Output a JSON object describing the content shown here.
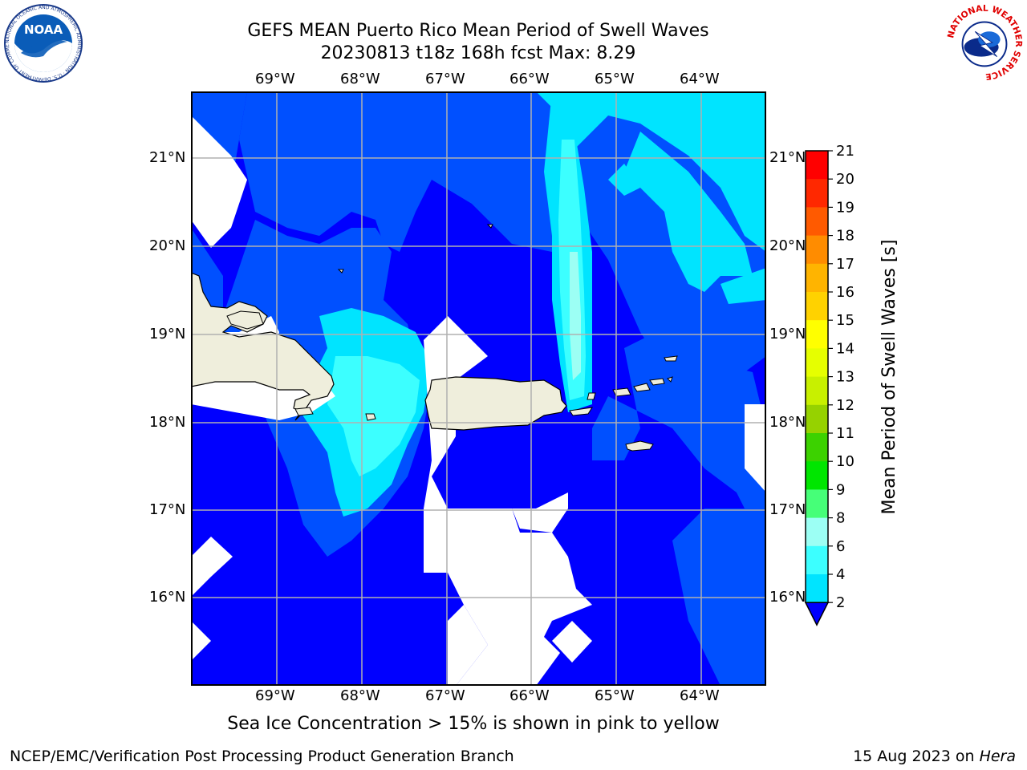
{
  "title_line1": "GEFS MEAN Puerto Rico Mean Period of Swell Waves",
  "title_line2": "20230813 t18z 168h fcst   Max: 8.29",
  "bottom_note": "Sea Ice Concentration > 15% is shown in pink to yellow",
  "footer_left": "NCEP/EMC/Verification Post Processing Product Generation Branch",
  "footer_right_date": "15 Aug 2023 on ",
  "footer_right_host": "Hera",
  "logo_left_text": "NOAA",
  "logo_left_ring": "NATIONAL OCEANIC AND ATMOSPHERIC ADMINISTRATION · U.S. DEPARTMENT OF COMMERCE",
  "logo_right_ring": "NATIONAL WEATHER SERVICE",
  "map": {
    "lon_labels": [
      "69°W",
      "68°W",
      "67°W",
      "66°W",
      "65°W",
      "64°W"
    ],
    "lat_labels": [
      "21°N",
      "20°N",
      "19°N",
      "18°N",
      "17°N",
      "16°N"
    ],
    "lon_range": [
      -70.0,
      -63.25
    ],
    "lat_range": [
      15.0,
      21.75
    ]
  },
  "colorbar": {
    "label": "Mean Period of Swell Waves [s]",
    "ticks": [
      "2",
      "4",
      "6",
      "8",
      "9",
      "10",
      "11",
      "12",
      "13",
      "14",
      "15",
      "16",
      "17",
      "18",
      "19",
      "20",
      "21"
    ],
    "colors": [
      "#0050ff",
      "#00e4ff",
      "#3cffff",
      "#9cfff4",
      "#46ff78",
      "#00e600",
      "#3cd200",
      "#96d200",
      "#c8f000",
      "#e6ff00",
      "#ffff00",
      "#ffd200",
      "#ffb400",
      "#ff8c00",
      "#ff5a00",
      "#ff2800",
      "#ff0000"
    ],
    "under_color": "#0000ff"
  },
  "field_colors": {
    "lt4": "#0000ff",
    "c4_6": "#0050ff",
    "c6_8": "#00e4ff",
    "c8_9": "#3cffff",
    "c9_10": "#9cfff4",
    "land": "#efeedc",
    "missing": "#ffffff"
  }
}
